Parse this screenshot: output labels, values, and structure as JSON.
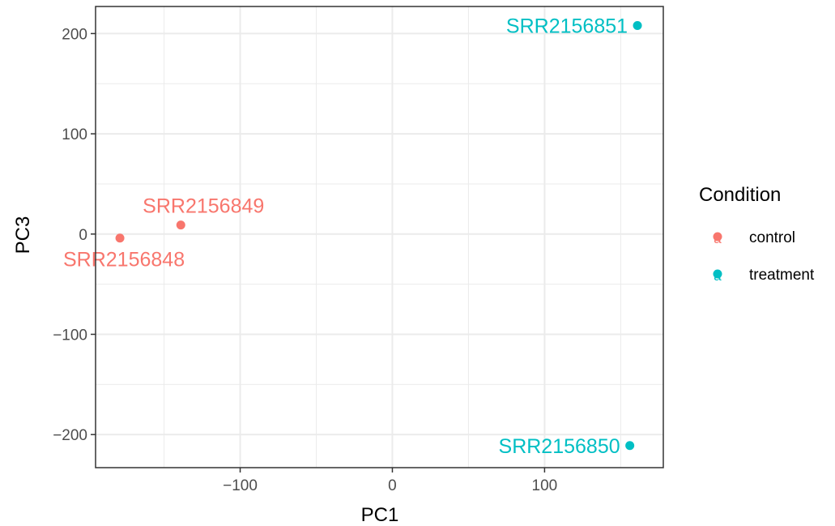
{
  "chart_data": {
    "type": "scatter",
    "xlabel": "PC1",
    "ylabel": "PC3",
    "xlim": [
      -195,
      178
    ],
    "ylim": [
      -233,
      227
    ],
    "x_ticks": [
      -100,
      0,
      100
    ],
    "x_tick_labels": [
      "−100",
      "0",
      "100"
    ],
    "y_ticks": [
      -200,
      -100,
      0,
      100,
      200
    ],
    "y_tick_labels": [
      "−200",
      "−100",
      "0",
      "100",
      "200"
    ],
    "grid": true,
    "legend": {
      "title": "Condition",
      "placement": "right",
      "glyph": "a",
      "entries": [
        {
          "label": "control",
          "color": "#F8766D"
        },
        {
          "label": "treatment",
          "color": "#00BFC4"
        }
      ]
    },
    "points": [
      {
        "label": "SRR2156848",
        "x": -179,
        "y": -4,
        "condition": "control"
      },
      {
        "label": "SRR2156849",
        "x": -139,
        "y": 9,
        "condition": "control"
      },
      {
        "label": "SRR2156850",
        "x": 156,
        "y": -211,
        "condition": "treatment"
      },
      {
        "label": "SRR2156851",
        "x": 161,
        "y": 208,
        "condition": "treatment"
      }
    ]
  }
}
